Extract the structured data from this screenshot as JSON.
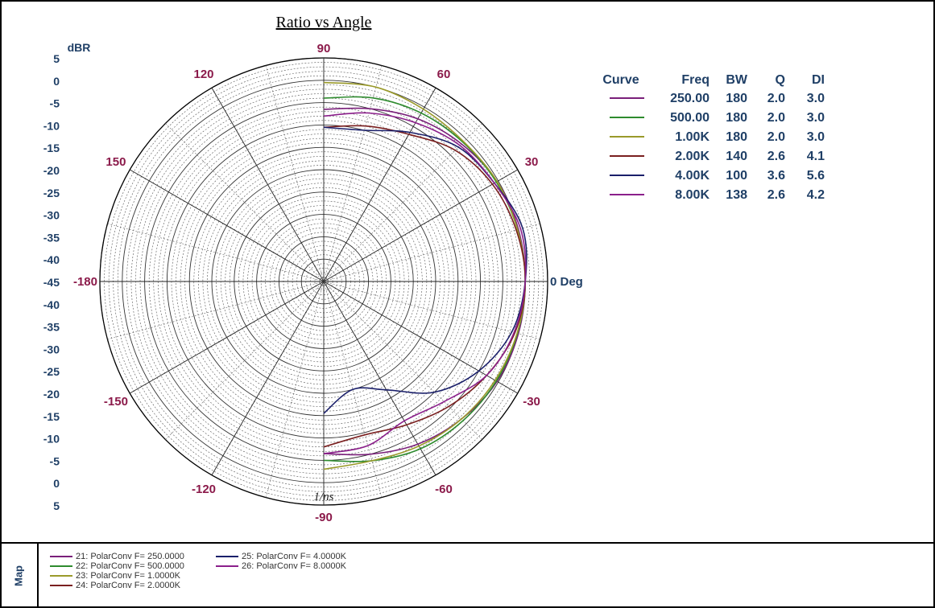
{
  "chart_data": {
    "type": "polar-line",
    "title": "Ratio vs Angle",
    "radial_unit": "dBR",
    "angle_unit": "0 Deg",
    "radial_ticks_upper": [
      "5",
      "0",
      "-5",
      "-10",
      "-15",
      "-20",
      "-25",
      "-30",
      "-35",
      "-40",
      "-45"
    ],
    "radial_ticks_lower": [
      "-40",
      "-35",
      "-30",
      "-25",
      "-20",
      "-15",
      "-10",
      "-5",
      "0",
      "5"
    ],
    "rlim": [
      -45,
      5
    ],
    "angle_ticks": [
      {
        "angle": 90,
        "label": "90"
      },
      {
        "angle": 60,
        "label": "60"
      },
      {
        "angle": 30,
        "label": "30"
      },
      {
        "angle": 0,
        "label": "0 Deg"
      },
      {
        "angle": -30,
        "label": "-30"
      },
      {
        "angle": -60,
        "label": "-60"
      },
      {
        "angle": -90,
        "label": "-90"
      },
      {
        "angle": -120,
        "label": "-120"
      },
      {
        "angle": -150,
        "label": "-150"
      },
      {
        "angle": 180,
        "label": "-180"
      },
      {
        "angle": 150,
        "label": "150"
      },
      {
        "angle": 120,
        "label": "120"
      }
    ],
    "annotation": "1/ns",
    "table_headers": [
      "Curve",
      "Freq",
      "BW",
      "Q",
      "DI"
    ],
    "series": [
      {
        "freq": "250.00",
        "bw": "180",
        "q": "2.0",
        "di": "3.0",
        "color": "#7a1f7a",
        "angles": [
          90,
          75,
          60,
          45,
          30,
          15,
          0,
          -15,
          -30,
          -45,
          -60,
          -75,
          -90
        ],
        "values": [
          -6.5,
          -5,
          -3,
          -1.5,
          -0.3,
          0,
          0,
          0,
          -0.3,
          -1.5,
          -3,
          -5,
          -6.5
        ]
      },
      {
        "freq": "500.00",
        "bw": "180",
        "q": "2.0",
        "di": "3.0",
        "color": "#2e8b2e",
        "angles": [
          90,
          75,
          60,
          45,
          30,
          15,
          0,
          -15,
          -30,
          -45,
          -60,
          -75,
          -90
        ],
        "values": [
          -4,
          -2.5,
          -1.5,
          -1,
          -0.5,
          -0.2,
          0,
          -0.2,
          -0.5,
          -1,
          -1.8,
          -3.5,
          -5
        ]
      },
      {
        "freq": "1.00K",
        "bw": "180",
        "q": "2.0",
        "di": "3.0",
        "color": "#9a9a2a",
        "angles": [
          90,
          75,
          60,
          45,
          30,
          15,
          0,
          -15,
          -30,
          -45,
          -60,
          -75,
          -90
        ],
        "values": [
          -0.5,
          0,
          -0.5,
          -0.8,
          -0.3,
          -0.2,
          0,
          -0.3,
          -0.8,
          -1.5,
          -2.5,
          -3.5,
          -3
        ]
      },
      {
        "freq": "2.00K",
        "bw": "140",
        "q": "2.6",
        "di": "4.1",
        "color": "#7a1f1f",
        "angles": [
          90,
          75,
          60,
          45,
          30,
          15,
          0,
          -15,
          -30,
          -45,
          -60,
          -75,
          -90
        ],
        "values": [
          -10.5,
          -9,
          -7,
          -3.5,
          -1.5,
          -0.5,
          0,
          -0.8,
          -3,
          -5.5,
          -8,
          -9.5,
          -8
        ]
      },
      {
        "freq": "4.00K",
        "bw": "100",
        "q": "3.6",
        "di": "5.6",
        "color": "#1a1f6a",
        "angles": [
          90,
          75,
          60,
          45,
          30,
          15,
          0,
          -15,
          -30,
          -45,
          -60,
          -75,
          -90
        ],
        "values": [
          -10.5,
          -10,
          -6.5,
          -2.5,
          -1,
          1,
          0,
          -1.5,
          -5,
          -10,
          -17,
          -20,
          -15.5
        ]
      },
      {
        "freq": "8.00K",
        "bw": "138",
        "q": "2.6",
        "di": "4.2",
        "color": "#8b1f8b",
        "angles": [
          90,
          75,
          60,
          45,
          30,
          15,
          0,
          -15,
          -30,
          -45,
          -60,
          -75,
          -90
        ],
        "values": [
          -8,
          -6,
          -4,
          -2,
          -1,
          0.5,
          0,
          -1,
          -3,
          -7,
          -9,
          -7,
          -6.5
        ]
      }
    ]
  },
  "map": {
    "label": "Map",
    "entries": [
      {
        "text": "21: PolarConv F= 250.0000",
        "color": "#7a1f7a"
      },
      {
        "text": "22: PolarConv F= 500.0000",
        "color": "#2e8b2e"
      },
      {
        "text": "23: PolarConv F=   1.0000K",
        "color": "#9a9a2a"
      },
      {
        "text": "24: PolarConv F=   2.0000K",
        "color": "#7a1f1f"
      },
      {
        "text": "25: PolarConv F=   4.0000K",
        "color": "#1a1f6a"
      },
      {
        "text": "26: PolarConv F=   8.0000K",
        "color": "#8b1f8b"
      }
    ]
  }
}
